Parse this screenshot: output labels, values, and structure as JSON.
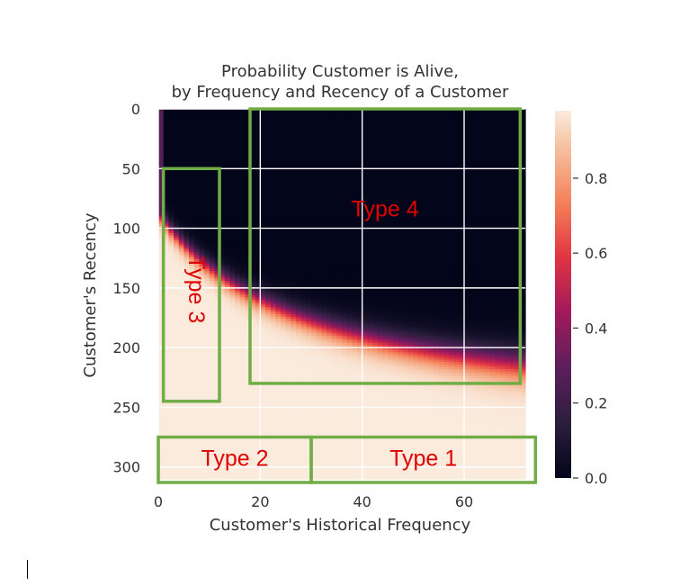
{
  "chart_data": {
    "type": "heatmap",
    "title": "Probability Customer is Alive,",
    "subtitle": "by Frequency and Recency of a Customer",
    "xlabel": "Customer's Historical Frequency",
    "ylabel": "Customer's Recency",
    "xlim": [
      0,
      72
    ],
    "ylim": [
      0,
      310
    ],
    "y_inverted": true,
    "x_ticks": [
      0,
      20,
      40,
      60
    ],
    "y_ticks": [
      0,
      50,
      100,
      150,
      200,
      250,
      300
    ],
    "grid": true,
    "colorbar": {
      "range": [
        0,
        0.98
      ],
      "ticks": [
        "0.0",
        "0.2",
        "0.4",
        "0.6",
        "0.8"
      ],
      "tick_values": [
        0.0,
        0.2,
        0.4,
        0.6,
        0.8
      ],
      "colormap": "rocket"
    },
    "annotations": [
      {
        "label": "Type 1",
        "x_range": [
          30,
          74
        ],
        "y_range": [
          275,
          313
        ]
      },
      {
        "label": "Type 2",
        "x_range": [
          0,
          30
        ],
        "y_range": [
          275,
          313
        ]
      },
      {
        "label": "Type 3",
        "x_range": [
          1,
          12
        ],
        "y_range": [
          50,
          245
        ],
        "rotated": true
      },
      {
        "label": "Type 4",
        "x_range": [
          18,
          71
        ],
        "y_range": [
          0,
          230
        ]
      }
    ],
    "annotation_box_color": "#70ad47",
    "annotation_text_color": "#e00000"
  }
}
